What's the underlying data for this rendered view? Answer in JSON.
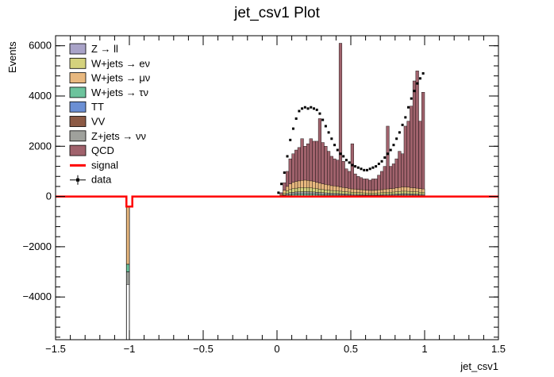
{
  "chart_data": {
    "type": "bar",
    "title": "jet_csv1 Plot",
    "xlabel": "jet_csv1",
    "ylabel": "Events",
    "xlim": [
      -1.5,
      1.5
    ],
    "ylim": [
      -5700,
      6400
    ],
    "x_ticks": [
      "−1.5",
      "−1",
      "−0.5",
      "0",
      "0.5",
      "1",
      "1.5"
    ],
    "y_ticks": [
      "−4000",
      "−2000",
      "0",
      "2000",
      "4000",
      "6000"
    ],
    "legend_position": "top-left",
    "legend": [
      {
        "label": "Z → ll",
        "color": "#a9a3c8",
        "kind": "fill"
      },
      {
        "label": "W+jets → eν",
        "color": "#d4d27d",
        "kind": "fill"
      },
      {
        "label": "W+jets → μν",
        "color": "#e8b87f",
        "kind": "fill"
      },
      {
        "label": "W+jets → τν",
        "color": "#6cc39c",
        "kind": "fill"
      },
      {
        "label": "TT",
        "color": "#6b8fd4",
        "kind": "fill"
      },
      {
        "label": "VV",
        "color": "#8c5a45",
        "kind": "fill"
      },
      {
        "label": "Z+jets → νν",
        "color": "#9fa19c",
        "kind": "fill"
      },
      {
        "label": "QCD",
        "color": "#a0626c",
        "kind": "fill"
      },
      {
        "label": "signal",
        "color": "#ff0000",
        "kind": "line"
      },
      {
        "label": "data",
        "color": "#000000",
        "kind": "marker"
      }
    ],
    "bin_width": 0.02,
    "stack_x_start": 0.0,
    "qcd_stack_top": [
      0,
      150,
      550,
      1000,
      1500,
      1700,
      1850,
      1950,
      2300,
      2000,
      2100,
      2300,
      2200,
      2200,
      3100,
      2150,
      2000,
      1800,
      1600,
      1500,
      1450,
      6100,
      1400,
      1100,
      1000,
      2100,
      900,
      800,
      750,
      700,
      700,
      650,
      700,
      700,
      850,
      1000,
      1200,
      2800,
      1200,
      1300,
      1500,
      1800,
      1700,
      2800,
      3000,
      3600,
      4600,
      5000,
      3000,
      4150
    ],
    "other_stack_top": [
      0,
      80,
      250,
      400,
      500,
      560,
      600,
      620,
      640,
      650,
      640,
      620,
      600,
      560,
      530,
      500,
      480,
      460,
      430,
      420,
      400,
      380,
      360,
      340,
      320,
      300,
      290,
      280,
      270,
      260,
      250,
      240,
      240,
      250,
      260,
      270,
      290,
      300,
      310,
      320,
      340,
      360,
      380,
      380,
      370,
      350,
      340,
      330,
      310,
      300
    ],
    "data_points": [
      {
        "x": 0.01,
        "y": 150
      },
      {
        "x": 0.03,
        "y": 500
      },
      {
        "x": 0.05,
        "y": 950
      },
      {
        "x": 0.07,
        "y": 1600
      },
      {
        "x": 0.09,
        "y": 2250
      },
      {
        "x": 0.11,
        "y": 2700
      },
      {
        "x": 0.13,
        "y": 3100
      },
      {
        "x": 0.15,
        "y": 3400
      },
      {
        "x": 0.17,
        "y": 3500
      },
      {
        "x": 0.19,
        "y": 3550
      },
      {
        "x": 0.21,
        "y": 3500
      },
      {
        "x": 0.23,
        "y": 3550
      },
      {
        "x": 0.25,
        "y": 3500
      },
      {
        "x": 0.27,
        "y": 3450
      },
      {
        "x": 0.29,
        "y": 3300
      },
      {
        "x": 0.31,
        "y": 3050
      },
      {
        "x": 0.33,
        "y": 2800
      },
      {
        "x": 0.35,
        "y": 2550
      },
      {
        "x": 0.37,
        "y": 2300
      },
      {
        "x": 0.39,
        "y": 2050
      },
      {
        "x": 0.41,
        "y": 1850
      },
      {
        "x": 0.43,
        "y": 1700
      },
      {
        "x": 0.45,
        "y": 1600
      },
      {
        "x": 0.47,
        "y": 1450
      },
      {
        "x": 0.49,
        "y": 1350
      },
      {
        "x": 0.51,
        "y": 1250
      },
      {
        "x": 0.53,
        "y": 1200
      },
      {
        "x": 0.55,
        "y": 1150
      },
      {
        "x": 0.57,
        "y": 1100
      },
      {
        "x": 0.59,
        "y": 1050
      },
      {
        "x": 0.61,
        "y": 1050
      },
      {
        "x": 0.63,
        "y": 1100
      },
      {
        "x": 0.65,
        "y": 1150
      },
      {
        "x": 0.67,
        "y": 1200
      },
      {
        "x": 0.69,
        "y": 1300
      },
      {
        "x": 0.71,
        "y": 1400
      },
      {
        "x": 0.73,
        "y": 1550
      },
      {
        "x": 0.75,
        "y": 1700
      },
      {
        "x": 0.77,
        "y": 1850
      },
      {
        "x": 0.79,
        "y": 2050
      },
      {
        "x": 0.81,
        "y": 2300
      },
      {
        "x": 0.83,
        "y": 2550
      },
      {
        "x": 0.85,
        "y": 2850
      },
      {
        "x": 0.87,
        "y": 3150
      },
      {
        "x": 0.89,
        "y": 3550
      },
      {
        "x": 0.91,
        "y": 3900
      },
      {
        "x": 0.93,
        "y": 4200
      },
      {
        "x": 0.95,
        "y": 4500
      },
      {
        "x": 0.97,
        "y": 4700
      },
      {
        "x": 0.99,
        "y": 4900
      }
    ],
    "negative_bin": {
      "x_from": -1.02,
      "x_to": -1.0,
      "layers": [
        {
          "name": "W+jets → μν",
          "y_from": -400,
          "y_to": -2700
        },
        {
          "name": "W+jets → τν",
          "y_from": -2700,
          "y_to": -3000
        },
        {
          "name": "Z+jets → νν",
          "y_from": -3000,
          "y_to": -3500
        }
      ],
      "fill_to": -5700
    },
    "signal": {
      "y": 0,
      "dip_x": [
        -1.02,
        -0.98
      ],
      "dip_y": -400
    }
  }
}
